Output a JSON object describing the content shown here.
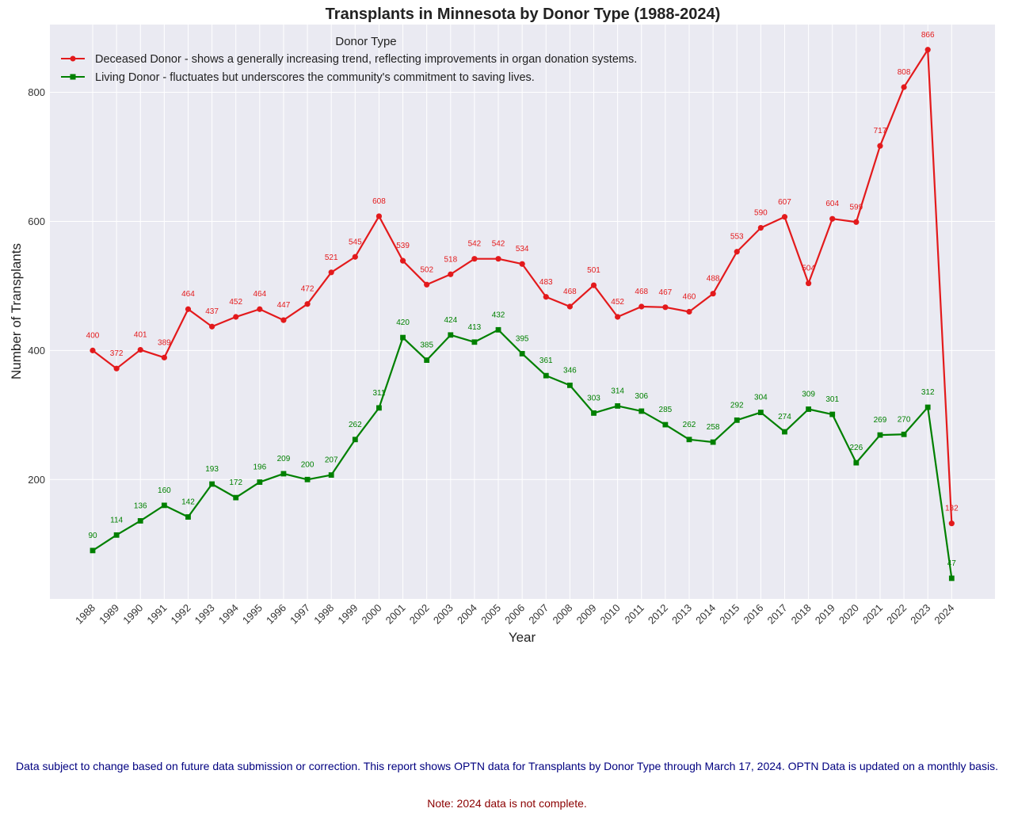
{
  "chart_data": {
    "type": "line",
    "title": "Transplants in Minnesota by Donor Type (1988-2024)",
    "xlabel": "Year",
    "ylabel": "Number of Transplants",
    "legend_title": "Donor Type",
    "legend_position": "top-left",
    "grid": true,
    "ylim": [
      15,
      905
    ],
    "yticks": [
      200,
      400,
      600,
      800
    ],
    "categories": [
      "1988",
      "1989",
      "1990",
      "1991",
      "1992",
      "1993",
      "1994",
      "1995",
      "1996",
      "1997",
      "1998",
      "1999",
      "2000",
      "2001",
      "2002",
      "2003",
      "2004",
      "2005",
      "2006",
      "2007",
      "2008",
      "2009",
      "2010",
      "2011",
      "2012",
      "2013",
      "2014",
      "2015",
      "2016",
      "2017",
      "2018",
      "2019",
      "2020",
      "2021",
      "2022",
      "2023",
      "2024"
    ],
    "series": [
      {
        "name": "Deceased Donor - shows a generally increasing trend, reflecting improvements in organ donation systems.",
        "color": "#e31a1c",
        "marker": "circle",
        "values": [
          400,
          372,
          401,
          389,
          464,
          437,
          452,
          464,
          447,
          472,
          521,
          545,
          608,
          539,
          502,
          518,
          542,
          542,
          534,
          483,
          468,
          501,
          452,
          468,
          467,
          460,
          488,
          553,
          590,
          607,
          504,
          604,
          599,
          717,
          808,
          866,
          132
        ]
      },
      {
        "name": "Living Donor - fluctuates but underscores the community's commitment to saving lives.",
        "color": "#008000",
        "marker": "square",
        "values": [
          90,
          114,
          136,
          160,
          142,
          193,
          172,
          196,
          209,
          200,
          207,
          262,
          311,
          420,
          385,
          424,
          413,
          432,
          395,
          361,
          346,
          303,
          314,
          306,
          285,
          262,
          258,
          292,
          304,
          274,
          309,
          301,
          226,
          269,
          270,
          312,
          47
        ]
      }
    ]
  },
  "footnotes": {
    "source": "Data subject to change based on future data submission or correction. This report shows OPTN data for Transplants by Donor Type through March 17, 2024. OPTN Data is updated on a monthly basis.",
    "note": "Note: 2024 data is not complete."
  },
  "colors": {
    "plot_background": "#eaeaf2",
    "grid": "#ffffff",
    "source_text": "#000080",
    "note_text": "#8b0000"
  }
}
